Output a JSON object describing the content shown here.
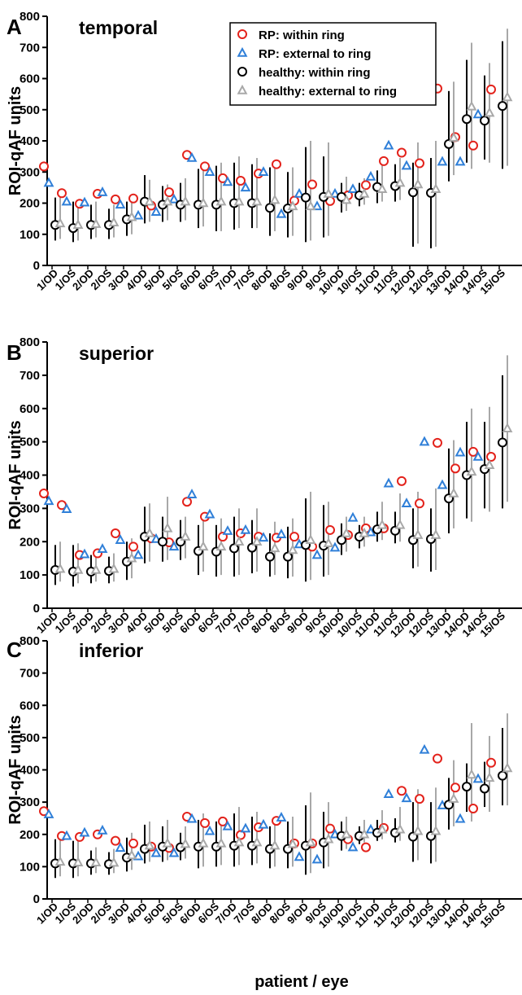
{
  "figure": {
    "xlabel": "patient / eye",
    "ylabel": "ROI-qAF units",
    "colors": {
      "rp_within": "#e3221b",
      "rp_external": "#2f7fd8",
      "healthy_within": "#000000",
      "healthy_external": "#a8a8a8"
    },
    "legend": {
      "placement": "top-center",
      "items": [
        "RP: within ring",
        "RP: external to ring",
        "healthy: within ring",
        "healthy: external to ring"
      ],
      "markers": [
        "circle",
        "triangle",
        "circle",
        "triangle"
      ]
    }
  },
  "chart_data": [
    {
      "type": "scatter",
      "panel": "A",
      "title": "temporal",
      "xlabel": "patient / eye",
      "ylabel": "ROI-qAF units",
      "ylim": [
        0,
        800
      ],
      "yticks": [
        0,
        100,
        200,
        300,
        400,
        500,
        600,
        700,
        800
      ],
      "categories": [
        "1/OD",
        "1/OS",
        "2/OD",
        "2/OS",
        "3/OD",
        "4/OD",
        "5/OD",
        "5/OS",
        "6/OD",
        "6/OS",
        "7/OD",
        "7/OS",
        "8/OD",
        "8/OS",
        "9/OD",
        "9/OS",
        "10/OD",
        "10/OS",
        "11/OD",
        "11/OS",
        "12/OD",
        "12/OS",
        "13/OD",
        "14/OD",
        "14/OS",
        "15/OS"
      ],
      "legend": "top-center",
      "grid": false,
      "series": [
        {
          "name": "RP: within ring",
          "values": [
            318,
            232,
            198,
            230,
            212,
            215,
            192,
            235,
            355,
            318,
            280,
            272,
            295,
            325,
            208,
            260,
            207,
            225,
            258,
            335,
            362,
            328,
            568,
            412,
            385,
            565
          ]
        },
        {
          "name": "RP: external to ring",
          "values": [
            265,
            205,
            202,
            235,
            195,
            160,
            172,
            212,
            345,
            300,
            268,
            250,
            300,
            165,
            230,
            190,
            230,
            245,
            285,
            385,
            320,
            565,
            333,
            333,
            485,
            null
          ]
        },
        {
          "name": "healthy: within ring",
          "values": [
            130,
            120,
            130,
            130,
            148,
            205,
            195,
            195,
            195,
            195,
            200,
            200,
            185,
            183,
            218,
            220,
            220,
            225,
            252,
            255,
            235,
            233,
            390,
            470,
            465,
            512
          ]
        },
        {
          "name": "healthy: external to ring",
          "values": [
            135,
            130,
            133,
            138,
            155,
            205,
            205,
            205,
            200,
            205,
            205,
            205,
            210,
            190,
            190,
            230,
            210,
            230,
            245,
            265,
            260,
            245,
            410,
            510,
            490,
            540
          ]
        }
      ],
      "error_bars": {
        "healthy: within ring": [
          [
            80,
            218
          ],
          [
            75,
            205
          ],
          [
            85,
            195
          ],
          [
            85,
            182
          ],
          [
            95,
            205
          ],
          [
            135,
            290
          ],
          [
            140,
            255
          ],
          [
            140,
            265
          ],
          [
            120,
            310
          ],
          [
            110,
            320
          ],
          [
            115,
            330
          ],
          [
            120,
            325
          ],
          [
            95,
            315
          ],
          [
            90,
            300
          ],
          [
            75,
            380
          ],
          [
            90,
            350
          ],
          [
            170,
            265
          ],
          [
            190,
            265
          ],
          [
            200,
            305
          ],
          [
            205,
            325
          ],
          [
            60,
            330
          ],
          [
            55,
            345
          ],
          [
            270,
            560
          ],
          [
            330,
            660
          ],
          [
            340,
            610
          ],
          [
            310,
            720
          ]
        ],
        "healthy: external to ring": [
          [
            85,
            225
          ],
          [
            80,
            210
          ],
          [
            90,
            205
          ],
          [
            90,
            195
          ],
          [
            100,
            215
          ],
          [
            140,
            275
          ],
          [
            145,
            260
          ],
          [
            145,
            280
          ],
          [
            125,
            320
          ],
          [
            110,
            330
          ],
          [
            120,
            350
          ],
          [
            120,
            345
          ],
          [
            110,
            320
          ],
          [
            95,
            315
          ],
          [
            80,
            400
          ],
          [
            95,
            395
          ],
          [
            175,
            285
          ],
          [
            195,
            280
          ],
          [
            205,
            325
          ],
          [
            210,
            345
          ],
          [
            70,
            395
          ],
          [
            60,
            400
          ],
          [
            290,
            590
          ],
          [
            310,
            715
          ],
          [
            330,
            650
          ],
          [
            320,
            760
          ]
        ]
      }
    },
    {
      "type": "scatter",
      "panel": "B",
      "title": "superior",
      "xlabel": "patient / eye",
      "ylabel": "ROI-qAF units",
      "ylim": [
        0,
        800
      ],
      "yticks": [
        0,
        100,
        200,
        300,
        400,
        500,
        600,
        700,
        800
      ],
      "categories": [
        "1/OD",
        "1/OS",
        "2/OD",
        "2/OS",
        "3/OD",
        "4/OD",
        "5/OD",
        "5/OS",
        "6/OD",
        "6/OS",
        "7/OD",
        "7/OS",
        "8/OD",
        "8/OS",
        "9/OD",
        "9/OS",
        "10/OD",
        "10/OS",
        "11/OD",
        "11/OS",
        "12/OD",
        "12/OS",
        "13/OD",
        "14/OD",
        "14/OS",
        "15/OS"
      ],
      "legend": "none",
      "grid": false,
      "series": [
        {
          "name": "RP: within ring",
          "values": [
            345,
            310,
            160,
            165,
            225,
            185,
            210,
            198,
            320,
            275,
            215,
            225,
            215,
            212,
            215,
            185,
            235,
            220,
            240,
            240,
            382,
            315,
            497,
            420,
            470,
            455
          ]
        },
        {
          "name": "RP: external to ring",
          "values": [
            322,
            298,
            162,
            178,
            205,
            160,
            208,
            185,
            342,
            282,
            232,
            235,
            212,
            222,
            192,
            160,
            182,
            272,
            228,
            375,
            315,
            500,
            370,
            468,
            455,
            null
          ]
        },
        {
          "name": "healthy: within ring",
          "values": [
            115,
            110,
            110,
            112,
            140,
            215,
            200,
            200,
            172,
            170,
            180,
            182,
            155,
            155,
            190,
            188,
            205,
            215,
            237,
            233,
            205,
            208,
            330,
            400,
            418,
            498
          ]
        },
        {
          "name": "healthy: external to ring",
          "values": [
            118,
            115,
            115,
            118,
            150,
            225,
            240,
            215,
            185,
            185,
            200,
            200,
            180,
            175,
            205,
            195,
            225,
            225,
            250,
            250,
            220,
            220,
            345,
            410,
            430,
            540
          ]
        }
      ],
      "error_bars": {
        "healthy: within ring": [
          [
            70,
            190
          ],
          [
            65,
            190
          ],
          [
            75,
            160
          ],
          [
            75,
            155
          ],
          [
            85,
            200
          ],
          [
            135,
            305
          ],
          [
            140,
            275
          ],
          [
            145,
            265
          ],
          [
            100,
            250
          ],
          [
            95,
            250
          ],
          [
            95,
            275
          ],
          [
            105,
            265
          ],
          [
            95,
            225
          ],
          [
            90,
            245
          ],
          [
            80,
            330
          ],
          [
            95,
            310
          ],
          [
            160,
            255
          ],
          [
            180,
            250
          ],
          [
            200,
            290
          ],
          [
            195,
            290
          ],
          [
            120,
            300
          ],
          [
            110,
            300
          ],
          [
            225,
            480
          ],
          [
            270,
            560
          ],
          [
            300,
            560
          ],
          [
            300,
            700
          ]
        ],
        "healthy: external to ring": [
          [
            80,
            200
          ],
          [
            75,
            195
          ],
          [
            80,
            165
          ],
          [
            80,
            165
          ],
          [
            90,
            210
          ],
          [
            140,
            315
          ],
          [
            145,
            335
          ],
          [
            150,
            275
          ],
          [
            110,
            275
          ],
          [
            100,
            270
          ],
          [
            100,
            300
          ],
          [
            110,
            300
          ],
          [
            100,
            260
          ],
          [
            95,
            270
          ],
          [
            85,
            350
          ],
          [
            100,
            320
          ],
          [
            170,
            275
          ],
          [
            185,
            275
          ],
          [
            205,
            320
          ],
          [
            200,
            345
          ],
          [
            125,
            350
          ],
          [
            115,
            360
          ],
          [
            240,
            505
          ],
          [
            260,
            600
          ],
          [
            290,
            605
          ],
          [
            320,
            760
          ]
        ]
      }
    },
    {
      "type": "scatter",
      "panel": "C",
      "title": "inferior",
      "xlabel": "patient / eye",
      "ylabel": "ROI-qAF units",
      "ylim": [
        0,
        800
      ],
      "yticks": [
        0,
        100,
        200,
        300,
        400,
        500,
        600,
        700,
        800
      ],
      "categories": [
        "1/OD",
        "1/OS",
        "2/OD",
        "2/OS",
        "3/OD",
        "4/OD",
        "5/OD",
        "5/OS",
        "6/OD",
        "6/OS",
        "7/OD",
        "7/OS",
        "8/OD",
        "8/OS",
        "9/OD",
        "9/OS",
        "10/OD",
        "10/OS",
        "11/OD",
        "11/OS",
        "12/OD",
        "12/OS",
        "13/OD",
        "14/OD",
        "14/OS",
        "15/OS"
      ],
      "legend": "none",
      "grid": false,
      "series": [
        {
          "name": "RP: within ring",
          "values": [
            272,
            195,
            192,
            200,
            180,
            172,
            162,
            158,
            255,
            235,
            240,
            198,
            222,
            242,
            172,
            172,
            218,
            185,
            160,
            220,
            335,
            310,
            435,
            345,
            280,
            422
          ]
        },
        {
          "name": "RP: external to ring",
          "values": [
            262,
            195,
            205,
            212,
            158,
            132,
            142,
            142,
            248,
            210,
            225,
            218,
            230,
            252,
            130,
            122,
            200,
            160,
            215,
            325,
            312,
            462,
            290,
            248,
            372,
            null
          ]
        },
        {
          "name": "healthy: within ring",
          "values": [
            110,
            110,
            110,
            108,
            128,
            155,
            162,
            160,
            162,
            162,
            165,
            165,
            155,
            155,
            165,
            175,
            195,
            195,
            205,
            205,
            193,
            195,
            292,
            348,
            342,
            382
          ]
        },
        {
          "name": "healthy: external to ring",
          "values": [
            115,
            113,
            113,
            112,
            135,
            165,
            172,
            170,
            172,
            172,
            175,
            175,
            165,
            170,
            175,
            185,
            200,
            200,
            215,
            215,
            210,
            210,
            310,
            385,
            375,
            405
          ]
        }
      ],
      "error_bars": {
        "healthy: within ring": [
          [
            65,
            185
          ],
          [
            65,
            180
          ],
          [
            75,
            150
          ],
          [
            75,
            145
          ],
          [
            85,
            190
          ],
          [
            110,
            230
          ],
          [
            115,
            225
          ],
          [
            120,
            205
          ],
          [
            95,
            245
          ],
          [
            100,
            240
          ],
          [
            100,
            265
          ],
          [
            105,
            255
          ],
          [
            95,
            225
          ],
          [
            95,
            240
          ],
          [
            75,
            290
          ],
          [
            95,
            270
          ],
          [
            150,
            240
          ],
          [
            170,
            225
          ],
          [
            180,
            245
          ],
          [
            175,
            250
          ],
          [
            115,
            300
          ],
          [
            110,
            300
          ],
          [
            215,
            375
          ],
          [
            270,
            420
          ],
          [
            285,
            425
          ],
          [
            290,
            530
          ]
        ],
        "healthy: external to ring": [
          [
            70,
            195
          ],
          [
            70,
            190
          ],
          [
            80,
            160
          ],
          [
            80,
            155
          ],
          [
            90,
            205
          ],
          [
            115,
            240
          ],
          [
            120,
            245
          ],
          [
            125,
            225
          ],
          [
            100,
            265
          ],
          [
            105,
            255
          ],
          [
            105,
            285
          ],
          [
            110,
            270
          ],
          [
            100,
            240
          ],
          [
            100,
            255
          ],
          [
            80,
            330
          ],
          [
            100,
            300
          ],
          [
            155,
            255
          ],
          [
            175,
            245
          ],
          [
            185,
            275
          ],
          [
            180,
            285
          ],
          [
            120,
            340
          ],
          [
            115,
            345
          ],
          [
            225,
            430
          ],
          [
            240,
            545
          ],
          [
            270,
            505
          ],
          [
            290,
            575
          ]
        ]
      }
    }
  ]
}
